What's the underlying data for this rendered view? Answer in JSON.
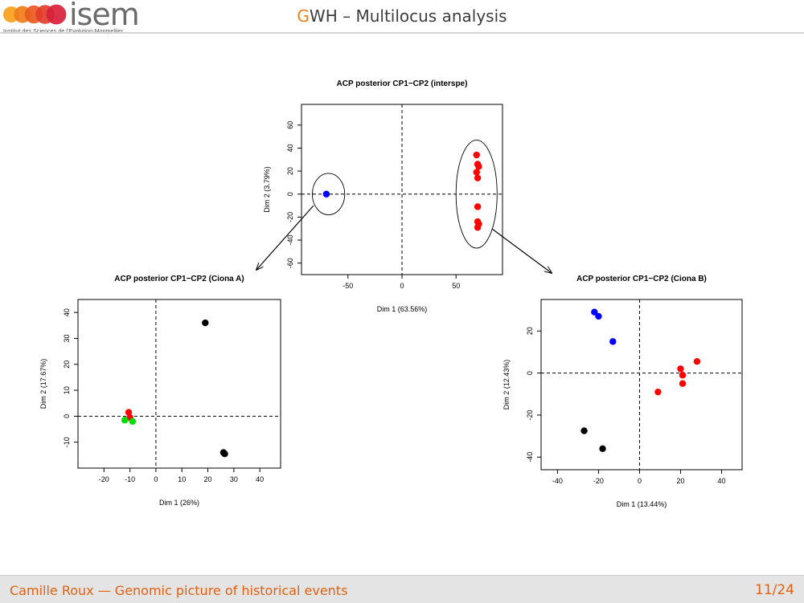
{
  "header": {
    "logo_text": "isem",
    "logo_tagline": "Institut des Sciences de l'Evolution-Montpellier",
    "title_accent": "G",
    "title_rest": "WH – Multilocus analysis",
    "logo_colors": [
      "#f7a11a",
      "#f07d1a",
      "#e9591e",
      "#e23d2c",
      "#d81f39"
    ]
  },
  "footer": {
    "text": "Camille Roux — Genomic picture of historical events",
    "page": "11/24"
  },
  "chart_data": [
    {
      "type": "scatter",
      "title": "ACP posterior CP1−CP2 (interspe)",
      "xlabel": "Dim 1 (63.56%)",
      "ylabel": "Dim 2 (3.79%)",
      "xlim": [
        -93,
        93
      ],
      "ylim": [
        -70,
        78
      ],
      "xticks": [
        -50,
        0,
        50
      ],
      "yticks": [
        -60,
        -40,
        -20,
        0,
        20,
        40,
        60
      ],
      "reference_lines": {
        "x": 0,
        "y": 0,
        "style": "dashed"
      },
      "points": [
        {
          "x": -70,
          "y": 0,
          "color": "#0000ff"
        },
        {
          "x": 69,
          "y": 34,
          "color": "#ff0000"
        },
        {
          "x": 70,
          "y": 26,
          "color": "#ff0000"
        },
        {
          "x": 71,
          "y": 24,
          "color": "#ff0000"
        },
        {
          "x": 69,
          "y": 19,
          "color": "#ff0000"
        },
        {
          "x": 70,
          "y": 14,
          "color": "#ff0000"
        },
        {
          "x": 70,
          "y": -11,
          "color": "#ff0000"
        },
        {
          "x": 70,
          "y": -24,
          "color": "#ff0000"
        },
        {
          "x": 71,
          "y": -26,
          "color": "#ff0000"
        },
        {
          "x": 70,
          "y": -29,
          "color": "#ff0000"
        }
      ],
      "ellipses": [
        {
          "cx": -68,
          "cy": 0,
          "rx": 15,
          "ry": 18
        },
        {
          "cx": 69,
          "cy": 0,
          "rx": 19,
          "ry": 47
        }
      ]
    },
    {
      "type": "scatter",
      "title": "ACP posterior CP1−CP2 (Ciona A)",
      "xlabel": "Dim 1 (26%)",
      "ylabel": "Dim 2 (17.67%)",
      "xlim": [
        -30,
        48
      ],
      "ylim": [
        -20,
        45
      ],
      "xticks": [
        -20,
        -10,
        0,
        10,
        20,
        30,
        40
      ],
      "yticks": [
        -10,
        0,
        10,
        20,
        30,
        40
      ],
      "reference_lines": {
        "x": 0,
        "y": 0,
        "style": "dashed"
      },
      "points": [
        {
          "x": 19,
          "y": 36,
          "color": "#000000"
        },
        {
          "x": 26,
          "y": -14,
          "color": "#000000"
        },
        {
          "x": 26.5,
          "y": -14.5,
          "color": "#000000"
        },
        {
          "x": -10.5,
          "y": 1.5,
          "color": "#ff0000"
        },
        {
          "x": -10,
          "y": -0.5,
          "color": "#ff0000"
        },
        {
          "x": -12,
          "y": -1.5,
          "color": "#00dd00"
        },
        {
          "x": -9,
          "y": -2,
          "color": "#00dd00"
        }
      ]
    },
    {
      "type": "scatter",
      "title": "ACP posterior CP1−CP2 (Ciona B)",
      "xlabel": "Dim 1 (13.44%)",
      "ylabel": "Dim 2 (12.43%)",
      "xlim": [
        -48,
        50
      ],
      "ylim": [
        -46,
        35
      ],
      "xticks": [
        -40,
        -20,
        0,
        20,
        40
      ],
      "yticks": [
        -40,
        -20,
        0,
        20
      ],
      "reference_lines": {
        "x": 0,
        "y": 0,
        "style": "dashed"
      },
      "points": [
        {
          "x": -22,
          "y": 29,
          "color": "#0000ff"
        },
        {
          "x": -20,
          "y": 27,
          "color": "#0000ff"
        },
        {
          "x": -13,
          "y": 15,
          "color": "#0000ff"
        },
        {
          "x": 28,
          "y": 5.5,
          "color": "#ff0000"
        },
        {
          "x": 20,
          "y": 2,
          "color": "#ff0000"
        },
        {
          "x": 21,
          "y": -1,
          "color": "#ff0000"
        },
        {
          "x": 21,
          "y": -5,
          "color": "#ff0000"
        },
        {
          "x": 9,
          "y": -9,
          "color": "#ff0000"
        },
        {
          "x": -27,
          "y": -27.5,
          "color": "#000000"
        },
        {
          "x": -18,
          "y": -36,
          "color": "#000000"
        }
      ]
    }
  ]
}
